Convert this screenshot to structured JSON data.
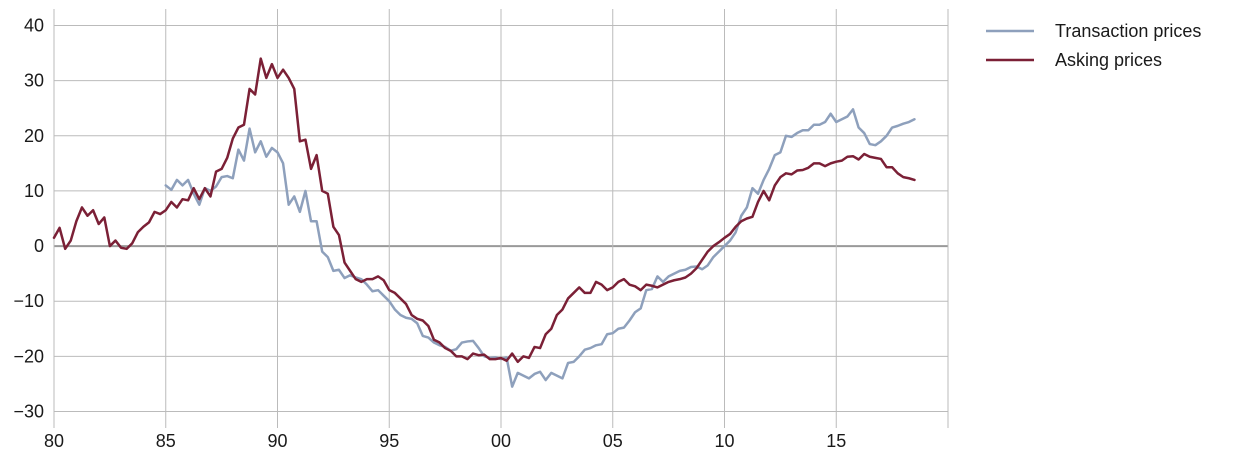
{
  "chart_data": {
    "type": "line",
    "title": "",
    "xlabel": "",
    "ylabel": "",
    "xlim": [
      1980,
      2020
    ],
    "ylim": [
      -33,
      43
    ],
    "x_ticks": [
      {
        "value": 1980,
        "label": "80"
      },
      {
        "value": 1985,
        "label": "85"
      },
      {
        "value": 1990,
        "label": "90"
      },
      {
        "value": 1995,
        "label": "95"
      },
      {
        "value": 2000,
        "label": "00"
      },
      {
        "value": 2005,
        "label": "05"
      },
      {
        "value": 2010,
        "label": "10"
      },
      {
        "value": 2015,
        "label": "15"
      },
      {
        "value": 2020,
        "label": ""
      }
    ],
    "y_ticks": [
      {
        "value": 40,
        "label": "40"
      },
      {
        "value": 30,
        "label": "30"
      },
      {
        "value": 20,
        "label": "20"
      },
      {
        "value": 10,
        "label": "10"
      },
      {
        "value": 0,
        "label": "0"
      },
      {
        "value": -10,
        "label": "−10"
      },
      {
        "value": -20,
        "label": "−20"
      },
      {
        "value": -30,
        "label": "−30"
      }
    ],
    "grid": true,
    "legend_position": "right",
    "zero_line_color": "#999999",
    "grid_color": "#bbbbbb",
    "series": [
      {
        "name": "Transaction prices",
        "color": "#8ea0bc",
        "x": [
          1985.0,
          1985.25,
          1985.5,
          1985.75,
          1986.0,
          1986.25,
          1986.5,
          1986.75,
          1987.0,
          1987.25,
          1987.5,
          1987.75,
          1988.0,
          1988.25,
          1988.5,
          1988.75,
          1989.0,
          1989.25,
          1989.5,
          1989.75,
          1990.0,
          1990.25,
          1990.5,
          1990.75,
          1991.0,
          1991.25,
          1991.5,
          1991.75,
          1992.0,
          1992.25,
          1992.5,
          1992.75,
          1993.0,
          1993.25,
          1993.5,
          1993.75,
          1994.0,
          1994.25,
          1994.5,
          1994.75,
          1995.0,
          1995.25,
          1995.5,
          1995.75,
          1996.0,
          1996.25,
          1996.5,
          1996.75,
          1997.0,
          1997.25,
          1997.5,
          1997.75,
          1998.0,
          1998.25,
          1998.5,
          1998.75,
          1999.0,
          1999.25,
          1999.5,
          1999.75,
          2000.0,
          2000.25,
          2000.5,
          2000.75,
          2001.0,
          2001.25,
          2001.5,
          2001.75,
          2002.0,
          2002.25,
          2002.5,
          2002.75,
          2003.0,
          2003.25,
          2003.5,
          2003.75,
          2004.0,
          2004.25,
          2004.5,
          2004.75,
          2005.0,
          2005.25,
          2005.5,
          2005.75,
          2006.0,
          2006.25,
          2006.5,
          2006.75,
          2007.0,
          2007.25,
          2007.5,
          2007.75,
          2008.0,
          2008.25,
          2008.5,
          2008.75,
          2009.0,
          2009.25,
          2009.5,
          2009.75,
          2010.0,
          2010.25,
          2010.5,
          2010.75,
          2011.0,
          2011.25,
          2011.5,
          2011.75,
          2012.0,
          2012.25,
          2012.5,
          2012.75,
          2013.0,
          2013.25,
          2013.5,
          2013.75,
          2014.0,
          2014.25,
          2014.5,
          2014.75,
          2015.0,
          2015.25,
          2015.5,
          2015.75,
          2016.0,
          2016.25,
          2016.5,
          2016.75,
          2017.0,
          2017.25,
          2017.5,
          2017.75,
          2018.0,
          2018.25,
          2018.5
        ],
        "values": [
          11.0,
          10.2,
          12.0,
          11.0,
          12.0,
          9.5,
          7.5,
          10.5,
          10.0,
          10.8,
          12.5,
          12.7,
          12.3,
          17.5,
          15.5,
          21.3,
          17.0,
          19.0,
          16.2,
          17.8,
          17.0,
          15.0,
          7.5,
          9.0,
          6.2,
          10.0,
          4.5,
          4.5,
          -1.0,
          -2.0,
          -4.5,
          -4.3,
          -5.8,
          -5.3,
          -5.7,
          -6.0,
          -7.0,
          -8.2,
          -8.0,
          -9.0,
          -10.0,
          -11.5,
          -12.5,
          -13.0,
          -13.2,
          -14.0,
          -16.3,
          -16.6,
          -17.5,
          -18.0,
          -18.3,
          -19.0,
          -18.7,
          -17.5,
          -17.3,
          -17.2,
          -18.5,
          -20.0,
          -20.3,
          -20.2,
          -20.5,
          -20.2,
          -25.5,
          -23.0,
          -23.5,
          -24.0,
          -23.2,
          -22.8,
          -24.3,
          -23.0,
          -23.5,
          -24.0,
          -21.2,
          -21.0,
          -20.0,
          -18.8,
          -18.5,
          -18.0,
          -17.8,
          -16.0,
          -15.8,
          -15.0,
          -14.8,
          -13.5,
          -12.0,
          -11.3,
          -8.0,
          -7.8,
          -5.5,
          -6.5,
          -5.5,
          -5.0,
          -4.5,
          -4.3,
          -3.8,
          -3.7,
          -4.2,
          -3.5,
          -2.0,
          -1.0,
          0.0,
          1.0,
          2.5,
          5.5,
          7.0,
          10.5,
          9.5,
          12.0,
          14.0,
          16.5,
          17.0,
          20.0,
          19.8,
          20.5,
          21.0,
          21.0,
          22.0,
          22.0,
          22.5,
          24.0,
          22.5,
          23.0,
          23.5,
          24.8,
          21.5,
          20.5,
          18.5,
          18.3,
          19.0,
          20.0,
          21.5,
          21.8,
          22.2,
          22.5,
          23.0
        ]
      },
      {
        "name": "Asking prices",
        "color": "#7b2036",
        "x": [
          1980.0,
          1980.25,
          1980.5,
          1980.75,
          1981.0,
          1981.25,
          1981.5,
          1981.75,
          1982.0,
          1982.25,
          1982.5,
          1982.75,
          1983.0,
          1983.25,
          1983.5,
          1983.75,
          1984.0,
          1984.25,
          1984.5,
          1984.75,
          1985.0,
          1985.25,
          1985.5,
          1985.75,
          1986.0,
          1986.25,
          1986.5,
          1986.75,
          1987.0,
          1987.25,
          1987.5,
          1987.75,
          1988.0,
          1988.25,
          1988.5,
          1988.75,
          1989.0,
          1989.25,
          1989.5,
          1989.75,
          1990.0,
          1990.25,
          1990.5,
          1990.75,
          1991.0,
          1991.25,
          1991.5,
          1991.75,
          1992.0,
          1992.25,
          1992.5,
          1992.75,
          1993.0,
          1993.25,
          1993.5,
          1993.75,
          1994.0,
          1994.25,
          1994.5,
          1994.75,
          1995.0,
          1995.25,
          1995.5,
          1995.75,
          1996.0,
          1996.25,
          1996.5,
          1996.75,
          1997.0,
          1997.25,
          1997.5,
          1997.75,
          1998.0,
          1998.25,
          1998.5,
          1998.75,
          1999.0,
          1999.25,
          1999.5,
          1999.75,
          2000.0,
          2000.25,
          2000.5,
          2000.75,
          2001.0,
          2001.25,
          2001.5,
          2001.75,
          2002.0,
          2002.25,
          2002.5,
          2002.75,
          2003.0,
          2003.25,
          2003.5,
          2003.75,
          2004.0,
          2004.25,
          2004.5,
          2004.75,
          2005.0,
          2005.25,
          2005.5,
          2005.75,
          2006.0,
          2006.25,
          2006.5,
          2006.75,
          2007.0,
          2007.25,
          2007.5,
          2007.75,
          2008.0,
          2008.25,
          2008.5,
          2008.75,
          2009.0,
          2009.25,
          2009.5,
          2009.75,
          2010.0,
          2010.25,
          2010.5,
          2010.75,
          2011.0,
          2011.25,
          2011.5,
          2011.75,
          2012.0,
          2012.25,
          2012.5,
          2012.75,
          2013.0,
          2013.25,
          2013.5,
          2013.75,
          2014.0,
          2014.25,
          2014.5,
          2014.75,
          2015.0,
          2015.25,
          2015.5,
          2015.75,
          2016.0,
          2016.25,
          2016.5,
          2016.75,
          2017.0,
          2017.25,
          2017.5,
          2017.75,
          2018.0,
          2018.25,
          2018.5
        ],
        "values": [
          1.5,
          3.3,
          -0.5,
          1.0,
          4.5,
          7.0,
          5.5,
          6.5,
          4.0,
          5.2,
          0.0,
          1.0,
          -0.3,
          -0.5,
          0.5,
          2.5,
          3.5,
          4.3,
          6.2,
          5.8,
          6.5,
          8.0,
          7.0,
          8.5,
          8.3,
          10.5,
          8.5,
          10.5,
          9.0,
          13.5,
          14.0,
          16.0,
          19.5,
          21.5,
          22.0,
          28.5,
          27.5,
          34.0,
          30.5,
          33.0,
          30.5,
          32.0,
          30.5,
          28.5,
          19.0,
          19.3,
          14.0,
          16.5,
          10.0,
          9.5,
          3.5,
          2.0,
          -3.0,
          -4.5,
          -6.0,
          -6.5,
          -6.0,
          -6.0,
          -5.5,
          -6.2,
          -8.0,
          -8.5,
          -9.5,
          -10.5,
          -12.5,
          -13.2,
          -13.5,
          -14.5,
          -17.0,
          -17.5,
          -18.5,
          -19.0,
          -20.0,
          -20.0,
          -20.5,
          -19.5,
          -19.8,
          -19.7,
          -20.5,
          -20.5,
          -20.3,
          -20.8,
          -19.5,
          -21.0,
          -20.0,
          -20.3,
          -18.3,
          -18.5,
          -16.0,
          -15.0,
          -12.5,
          -11.5,
          -9.5,
          -8.5,
          -7.5,
          -8.5,
          -8.5,
          -6.5,
          -7.0,
          -8.0,
          -7.5,
          -6.5,
          -6.0,
          -7.0,
          -7.3,
          -8.0,
          -7.0,
          -7.2,
          -7.5,
          -7.0,
          -6.5,
          -6.2,
          -6.0,
          -5.7,
          -5.0,
          -4.0,
          -2.5,
          -1.0,
          0.0,
          0.7,
          1.5,
          2.2,
          3.5,
          4.5,
          5.0,
          5.3,
          8.0,
          10.0,
          8.3,
          11.0,
          12.5,
          13.2,
          13.0,
          13.7,
          13.8,
          14.2,
          15.0,
          15.0,
          14.5,
          15.0,
          15.3,
          15.5,
          16.2,
          16.3,
          15.7,
          16.7,
          16.2,
          16.0,
          15.8,
          14.3,
          14.3,
          13.2,
          12.5,
          12.3,
          12.0
        ]
      }
    ]
  }
}
